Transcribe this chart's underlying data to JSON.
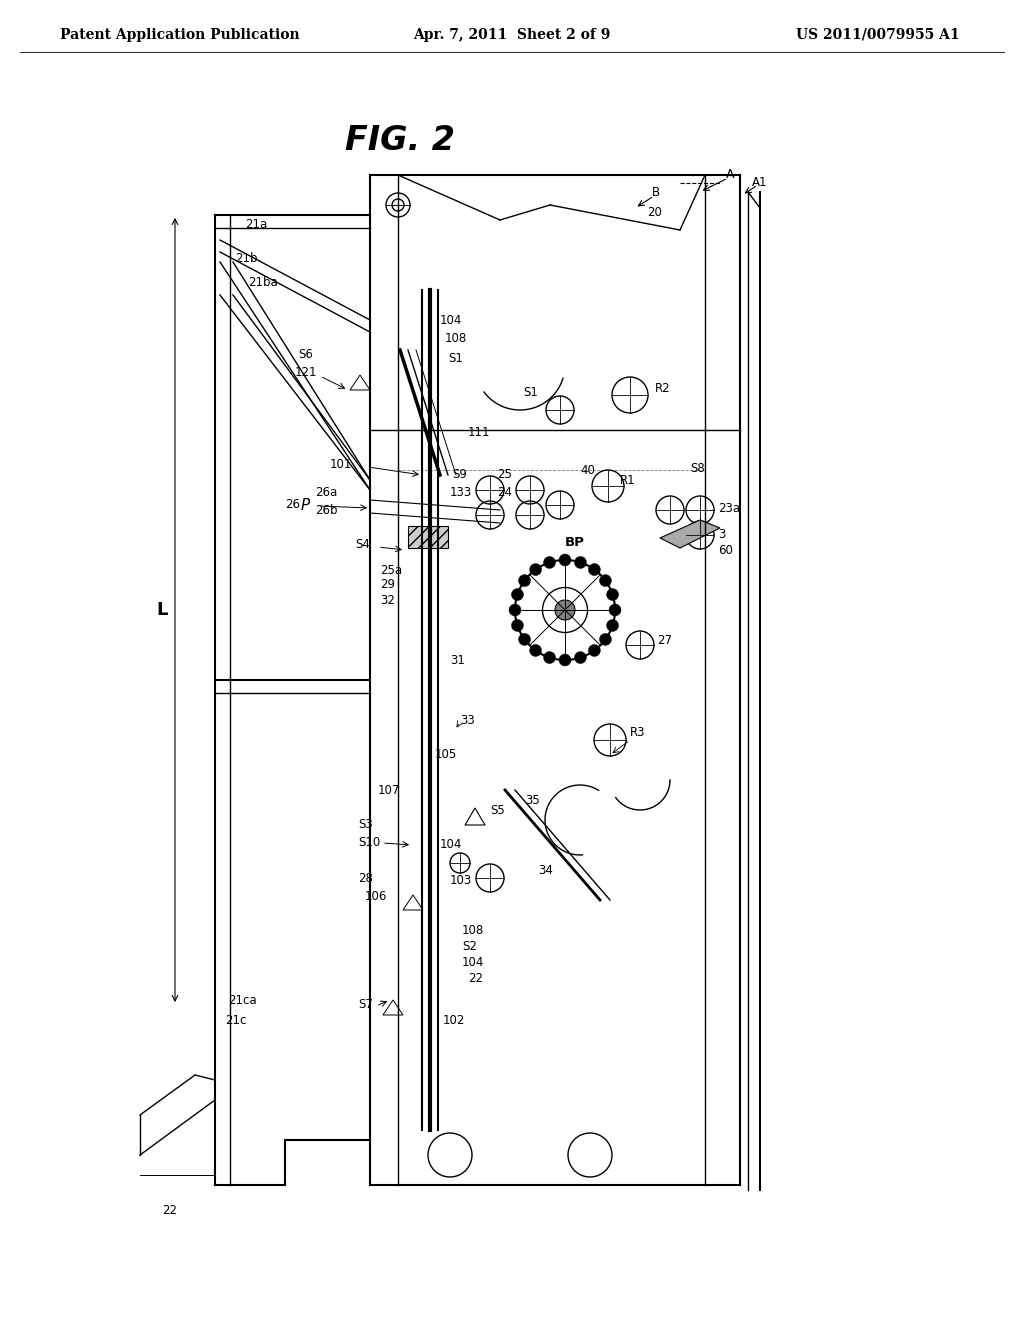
{
  "background_color": "#ffffff",
  "header_left": "Patent Application Publication",
  "header_center": "Apr. 7, 2011  Sheet 2 of 9",
  "header_right": "US 2011/0079955 A1",
  "fig_title": "FIG. 2",
  "header_fontsize": 10,
  "label_fontsize": 8.5,
  "fig_title_fontsize": 24
}
